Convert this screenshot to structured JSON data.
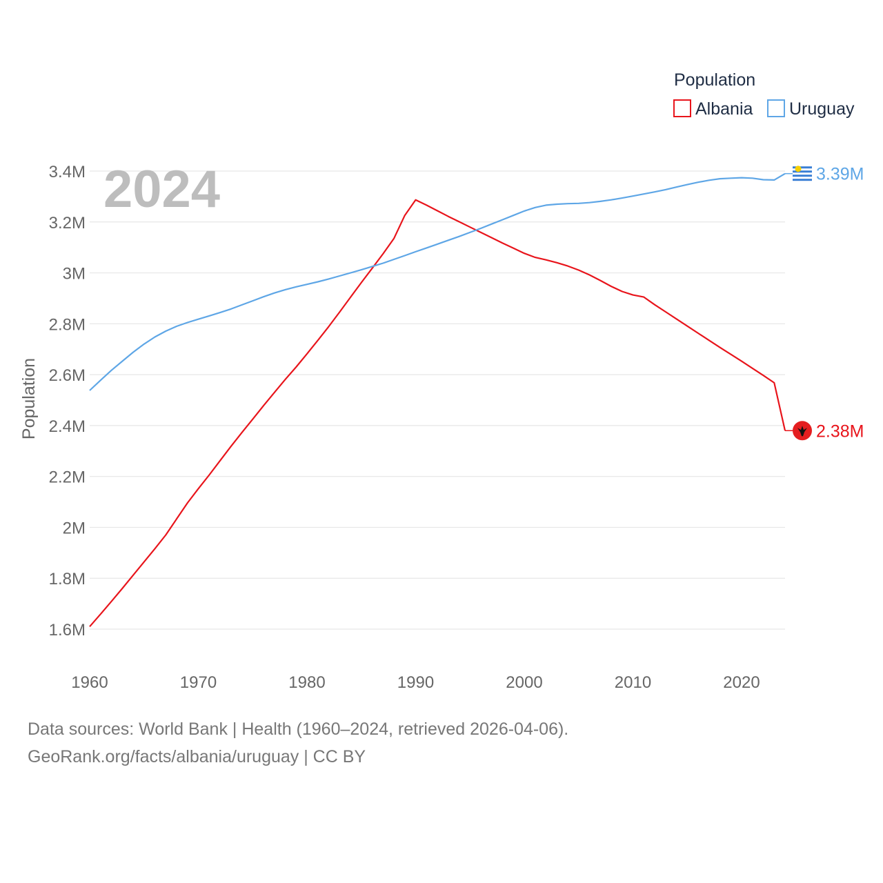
{
  "colors": {
    "albania": "#e8141b",
    "uruguay": "#5ea6e6",
    "grid": "#e6e6e6"
  },
  "chart_data": {
    "type": "line",
    "title": "",
    "year_overlay": "2024",
    "xlabel": "",
    "ylabel": "Population",
    "xlim": [
      1960,
      2024
    ],
    "ylim": [
      1600000,
      3400000
    ],
    "x_ticks": [
      1960,
      1970,
      1980,
      1990,
      2000,
      2010,
      2020
    ],
    "x_tick_labels": [
      "1960",
      "1970",
      "1980",
      "1990",
      "2000",
      "2010",
      "2020"
    ],
    "y_ticks": [
      1600000,
      1800000,
      2000000,
      2200000,
      2400000,
      2600000,
      2800000,
      3000000,
      3200000,
      3400000
    ],
    "y_tick_labels": [
      "1.6M",
      "1.8M",
      "2M",
      "2.2M",
      "2.4M",
      "2.6M",
      "2.8M",
      "3M",
      "3.2M",
      "3.4M"
    ],
    "legend": {
      "title": "Population",
      "position": "top-right",
      "entries": [
        "Albania",
        "Uruguay"
      ]
    },
    "series": [
      {
        "name": "Albania",
        "color": "#e8141b",
        "end_label": "2.38M",
        "flag": "albania-flag",
        "x": [
          1960,
          1961,
          1962,
          1963,
          1964,
          1965,
          1966,
          1967,
          1968,
          1969,
          1970,
          1971,
          1972,
          1973,
          1974,
          1975,
          1976,
          1977,
          1978,
          1979,
          1980,
          1981,
          1982,
          1983,
          1984,
          1985,
          1986,
          1987,
          1988,
          1989,
          1990,
          1991,
          1992,
          1993,
          1994,
          1995,
          1996,
          1997,
          1998,
          1999,
          2000,
          2001,
          2002,
          2003,
          2004,
          2005,
          2006,
          2007,
          2008,
          2009,
          2010,
          2011,
          2012,
          2013,
          2014,
          2015,
          2016,
          2017,
          2018,
          2019,
          2020,
          2021,
          2022,
          2023,
          2024
        ],
        "values": [
          1610000,
          1659000,
          1709000,
          1760000,
          1812000,
          1864000,
          1916000,
          1970000,
          2033000,
          2096000,
          2152000,
          2206000,
          2262000,
          2318000,
          2372000,
          2425000,
          2478000,
          2530000,
          2581000,
          2630000,
          2682000,
          2735000,
          2789000,
          2846000,
          2904000,
          2962000,
          3018000,
          3075000,
          3135000,
          3226000,
          3287000,
          3266000,
          3244000,
          3222000,
          3201000,
          3180000,
          3159000,
          3138000,
          3117000,
          3097000,
          3077000,
          3061000,
          3051000,
          3040000,
          3027000,
          3011000,
          2992000,
          2970000,
          2947000,
          2927000,
          2913000,
          2905000,
          2875000,
          2847000,
          2819000,
          2791000,
          2763000,
          2735000,
          2707000,
          2680000,
          2653000,
          2625000,
          2597000,
          2568000,
          2380000
        ]
      },
      {
        "name": "Uruguay",
        "color": "#5ea6e6",
        "end_label": "3.39M",
        "flag": "uruguay-flag",
        "x": [
          1960,
          1961,
          1962,
          1963,
          1964,
          1965,
          1966,
          1967,
          1968,
          1969,
          1970,
          1971,
          1972,
          1973,
          1974,
          1975,
          1976,
          1977,
          1978,
          1979,
          1980,
          1981,
          1982,
          1983,
          1984,
          1985,
          1986,
          1987,
          1988,
          1989,
          1990,
          1991,
          1992,
          1993,
          1994,
          1995,
          1996,
          1997,
          1998,
          1999,
          2000,
          2001,
          2002,
          2003,
          2004,
          2005,
          2006,
          2007,
          2008,
          2009,
          2010,
          2011,
          2012,
          2013,
          2014,
          2015,
          2016,
          2017,
          2018,
          2019,
          2020,
          2021,
          2022,
          2023,
          2024
        ],
        "values": [
          2538000,
          2578000,
          2617000,
          2653000,
          2688000,
          2720000,
          2748000,
          2771000,
          2790000,
          2805000,
          2818000,
          2831000,
          2844000,
          2858000,
          2874000,
          2890000,
          2906000,
          2921000,
          2934000,
          2945000,
          2955000,
          2965000,
          2976000,
          2988000,
          3000000,
          3012000,
          3025000,
          3038000,
          3053000,
          3068000,
          3083000,
          3098000,
          3113000,
          3128000,
          3143000,
          3159000,
          3175000,
          3192000,
          3209000,
          3226000,
          3243000,
          3257000,
          3266000,
          3270000,
          3272000,
          3273000,
          3276000,
          3281000,
          3287000,
          3294000,
          3302000,
          3310000,
          3318000,
          3327000,
          3337000,
          3347000,
          3356000,
          3364000,
          3370000,
          3372000,
          3374000,
          3372000,
          3366000,
          3365000,
          3390000
        ]
      }
    ]
  },
  "footer": {
    "line1": "Data sources: World Bank | Health (1960–2024, retrieved 2026-04-06).",
    "line2": "GeoRank.org/facts/albania/uruguay | CC BY"
  }
}
